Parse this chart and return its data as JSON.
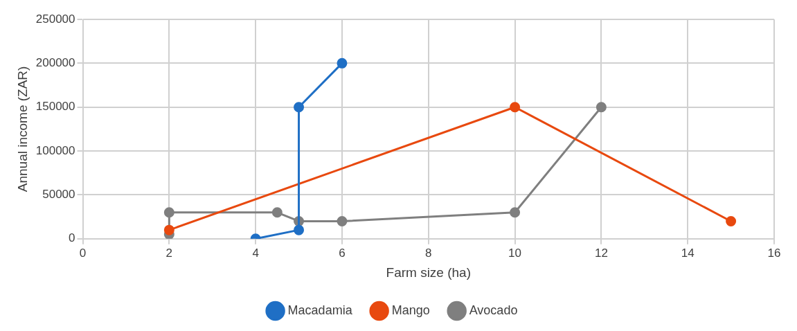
{
  "chart_data": {
    "type": "line",
    "xlabel": "Farm size (ha)",
    "ylabel": "Annual income (ZAR)",
    "xlim": [
      0,
      16
    ],
    "xticks": [
      0,
      2,
      4,
      6,
      8,
      10,
      12,
      14,
      16
    ],
    "ylim": [
      0,
      250000
    ],
    "yticks": [
      0,
      50000,
      100000,
      150000,
      200000,
      250000
    ],
    "grid": true,
    "legend": "bottom",
    "marker": "circle",
    "line_style": "solid",
    "series": [
      {
        "name": "Macadamia",
        "color": "#1f6fc5",
        "x": [
          4,
          5,
          5,
          6
        ],
        "values": [
          0,
          10000,
          150000,
          200000
        ]
      },
      {
        "name": "Mango",
        "color": "#e8490f",
        "x": [
          2,
          10,
          15
        ],
        "values": [
          10000,
          150000,
          20000
        ]
      },
      {
        "name": "Avocado",
        "color": "#7f7f7f",
        "x": [
          2,
          2,
          4.5,
          5,
          6,
          10,
          12
        ],
        "values": [
          5000,
          30000,
          30000,
          20000,
          20000,
          30000,
          150000
        ]
      }
    ]
  }
}
